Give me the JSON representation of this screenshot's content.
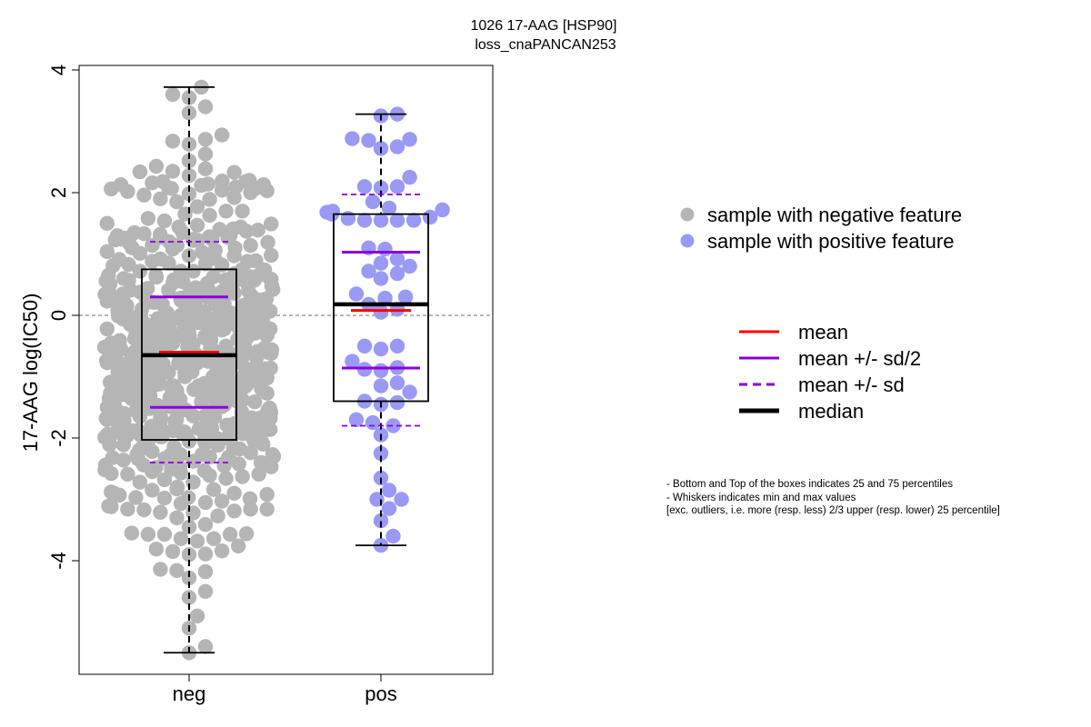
{
  "chart_data": {
    "type": "boxplot-beeswarm",
    "title_line1": "1026 17-AAG [HSP90]",
    "title_line2": "loss_cnaPANCAN253",
    "ylabel": "17-AAG log(IC50)",
    "ylim": [
      -5.8,
      4.1
    ],
    "yticks": [
      "-4",
      "-2",
      "0",
      "2",
      "4"
    ],
    "reference_line": 0,
    "groups": [
      {
        "name": "neg",
        "color": "#b5b5b5",
        "n_points": 640,
        "min": -5.5,
        "q1": -2.03,
        "median": -0.65,
        "q3": 0.75,
        "max": 3.72,
        "mean": -0.6,
        "mean_plus_half_sd": 0.3,
        "mean_minus_half_sd": -1.5,
        "mean_plus_sd": 1.2,
        "mean_minus_sd": -2.4
      },
      {
        "name": "pos",
        "color": "#9a9af5",
        "min": -3.75,
        "q1": -1.4,
        "median": 0.18,
        "q3": 1.65,
        "max": 3.28,
        "mean": 0.08,
        "mean_plus_half_sd": 1.03,
        "mean_minus_half_sd": -0.86,
        "mean_plus_sd": 1.97,
        "mean_minus_sd": -1.8,
        "values": [
          3.28,
          3.25,
          2.88,
          2.87,
          2.85,
          2.75,
          2.72,
          2.25,
          2.1,
          2.1,
          2.08,
          1.85,
          1.75,
          1.72,
          1.7,
          1.68,
          1.65,
          1.6,
          1.58,
          1.55,
          1.55,
          1.55,
          1.55,
          1.1,
          1.08,
          0.92,
          0.85,
          0.8,
          0.72,
          0.68,
          0.6,
          0.35,
          0.3,
          0.28,
          0.18,
          0.1,
          0.05,
          -0.5,
          -0.5,
          -0.55,
          -0.75,
          -0.85,
          -0.88,
          -0.9,
          -1.1,
          -1.15,
          -1.25,
          -1.4,
          -1.42,
          -1.45,
          -1.7,
          -1.75,
          -1.8,
          -1.95,
          -2.25,
          -2.65,
          -2.85,
          -3.0,
          -3.0,
          -3.15,
          -3.35,
          -3.6,
          -3.75
        ]
      }
    ],
    "legend_points": [
      {
        "label": "sample with negative feature",
        "color": "#b5b5b5"
      },
      {
        "label": "sample with positive feature",
        "color": "#9a9af5"
      }
    ],
    "legend_lines": [
      {
        "label": "mean",
        "color": "#ff0000",
        "style": "solid"
      },
      {
        "label": "mean +/- sd/2",
        "color": "#8a00e0",
        "style": "solid"
      },
      {
        "label": "mean +/- sd",
        "color": "#8a00e0",
        "style": "dashed"
      },
      {
        "label": "median",
        "color": "#000000",
        "style": "solid-thick"
      }
    ],
    "notes": [
      "- Bottom and Top of the boxes indicates 25 and 75 percentiles",
      "- Whiskers indicates min and max values",
      "[exc. outliers, i.e. more (resp. less) 2/3 upper (resp. lower) 25 percentile]"
    ]
  }
}
